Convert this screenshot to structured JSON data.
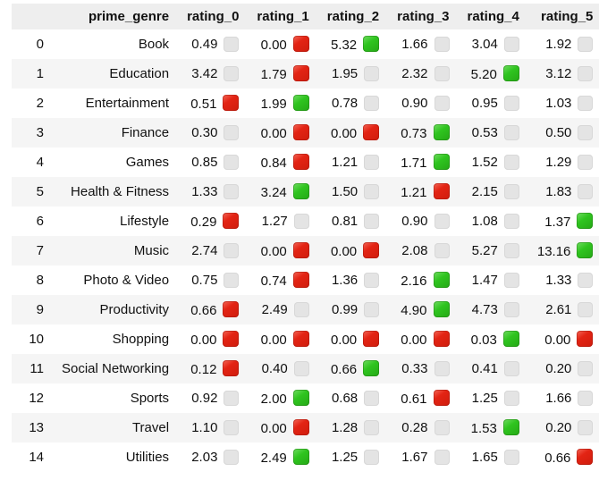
{
  "table": {
    "columns": [
      "",
      "prime_genre",
      "rating_0",
      "rating_1",
      "rating_2",
      "rating_3",
      "rating_4",
      "rating_5"
    ],
    "rows": [
      {
        "index": "0",
        "genre": "Book",
        "cells": [
          {
            "value": "0.49",
            "color": "gray"
          },
          {
            "value": "0.00",
            "color": "red"
          },
          {
            "value": "5.32",
            "color": "green"
          },
          {
            "value": "1.66",
            "color": "gray"
          },
          {
            "value": "3.04",
            "color": "gray"
          },
          {
            "value": "1.92",
            "color": "gray"
          }
        ]
      },
      {
        "index": "1",
        "genre": "Education",
        "cells": [
          {
            "value": "3.42",
            "color": "gray"
          },
          {
            "value": "1.79",
            "color": "red"
          },
          {
            "value": "1.95",
            "color": "gray"
          },
          {
            "value": "2.32",
            "color": "gray"
          },
          {
            "value": "5.20",
            "color": "green"
          },
          {
            "value": "3.12",
            "color": "gray"
          }
        ]
      },
      {
        "index": "2",
        "genre": "Entertainment",
        "cells": [
          {
            "value": "0.51",
            "color": "red"
          },
          {
            "value": "1.99",
            "color": "green"
          },
          {
            "value": "0.78",
            "color": "gray"
          },
          {
            "value": "0.90",
            "color": "gray"
          },
          {
            "value": "0.95",
            "color": "gray"
          },
          {
            "value": "1.03",
            "color": "gray"
          }
        ]
      },
      {
        "index": "3",
        "genre": "Finance",
        "cells": [
          {
            "value": "0.30",
            "color": "gray"
          },
          {
            "value": "0.00",
            "color": "red"
          },
          {
            "value": "0.00",
            "color": "red"
          },
          {
            "value": "0.73",
            "color": "green"
          },
          {
            "value": "0.53",
            "color": "gray"
          },
          {
            "value": "0.50",
            "color": "gray"
          }
        ]
      },
      {
        "index": "4",
        "genre": "Games",
        "cells": [
          {
            "value": "0.85",
            "color": "gray"
          },
          {
            "value": "0.84",
            "color": "red"
          },
          {
            "value": "1.21",
            "color": "gray"
          },
          {
            "value": "1.71",
            "color": "green"
          },
          {
            "value": "1.52",
            "color": "gray"
          },
          {
            "value": "1.29",
            "color": "gray"
          }
        ]
      },
      {
        "index": "5",
        "genre": "Health & Fitness",
        "cells": [
          {
            "value": "1.33",
            "color": "gray"
          },
          {
            "value": "3.24",
            "color": "green"
          },
          {
            "value": "1.50",
            "color": "gray"
          },
          {
            "value": "1.21",
            "color": "red"
          },
          {
            "value": "2.15",
            "color": "gray"
          },
          {
            "value": "1.83",
            "color": "gray"
          }
        ]
      },
      {
        "index": "6",
        "genre": "Lifestyle",
        "cells": [
          {
            "value": "0.29",
            "color": "red"
          },
          {
            "value": "1.27",
            "color": "gray"
          },
          {
            "value": "0.81",
            "color": "gray"
          },
          {
            "value": "0.90",
            "color": "gray"
          },
          {
            "value": "1.08",
            "color": "gray"
          },
          {
            "value": "1.37",
            "color": "green"
          }
        ]
      },
      {
        "index": "7",
        "genre": "Music",
        "cells": [
          {
            "value": "2.74",
            "color": "gray"
          },
          {
            "value": "0.00",
            "color": "red"
          },
          {
            "value": "0.00",
            "color": "red"
          },
          {
            "value": "2.08",
            "color": "gray"
          },
          {
            "value": "5.27",
            "color": "gray"
          },
          {
            "value": "13.16",
            "color": "green"
          }
        ]
      },
      {
        "index": "8",
        "genre": "Photo & Video",
        "cells": [
          {
            "value": "0.75",
            "color": "gray"
          },
          {
            "value": "0.74",
            "color": "red"
          },
          {
            "value": "1.36",
            "color": "gray"
          },
          {
            "value": "2.16",
            "color": "green"
          },
          {
            "value": "1.47",
            "color": "gray"
          },
          {
            "value": "1.33",
            "color": "gray"
          }
        ]
      },
      {
        "index": "9",
        "genre": "Productivity",
        "cells": [
          {
            "value": "0.66",
            "color": "red"
          },
          {
            "value": "2.49",
            "color": "gray"
          },
          {
            "value": "0.99",
            "color": "gray"
          },
          {
            "value": "4.90",
            "color": "green"
          },
          {
            "value": "4.73",
            "color": "gray"
          },
          {
            "value": "2.61",
            "color": "gray"
          }
        ]
      },
      {
        "index": "10",
        "genre": "Shopping",
        "cells": [
          {
            "value": "0.00",
            "color": "red"
          },
          {
            "value": "0.00",
            "color": "red"
          },
          {
            "value": "0.00",
            "color": "red"
          },
          {
            "value": "0.00",
            "color": "red"
          },
          {
            "value": "0.03",
            "color": "green"
          },
          {
            "value": "0.00",
            "color": "red"
          }
        ]
      },
      {
        "index": "11",
        "genre": "Social Networking",
        "cells": [
          {
            "value": "0.12",
            "color": "red"
          },
          {
            "value": "0.40",
            "color": "gray"
          },
          {
            "value": "0.66",
            "color": "green"
          },
          {
            "value": "0.33",
            "color": "gray"
          },
          {
            "value": "0.41",
            "color": "gray"
          },
          {
            "value": "0.20",
            "color": "gray"
          }
        ]
      },
      {
        "index": "12",
        "genre": "Sports",
        "cells": [
          {
            "value": "0.92",
            "color": "gray"
          },
          {
            "value": "2.00",
            "color": "green"
          },
          {
            "value": "0.68",
            "color": "gray"
          },
          {
            "value": "0.61",
            "color": "red"
          },
          {
            "value": "1.25",
            "color": "gray"
          },
          {
            "value": "1.66",
            "color": "gray"
          }
        ]
      },
      {
        "index": "13",
        "genre": "Travel",
        "cells": [
          {
            "value": "1.10",
            "color": "gray"
          },
          {
            "value": "0.00",
            "color": "red"
          },
          {
            "value": "1.28",
            "color": "gray"
          },
          {
            "value": "0.28",
            "color": "gray"
          },
          {
            "value": "1.53",
            "color": "green"
          },
          {
            "value": "0.20",
            "color": "gray"
          }
        ]
      },
      {
        "index": "14",
        "genre": "Utilities",
        "cells": [
          {
            "value": "2.03",
            "color": "gray"
          },
          {
            "value": "2.49",
            "color": "green"
          },
          {
            "value": "1.25",
            "color": "gray"
          },
          {
            "value": "1.67",
            "color": "gray"
          },
          {
            "value": "1.65",
            "color": "gray"
          },
          {
            "value": "0.66",
            "color": "red"
          }
        ]
      }
    ]
  },
  "colors": {
    "red_square": "#e32414",
    "green_square": "#2fc41f",
    "gray_square": "#e4e4e4",
    "header_bg": "#eeeeee",
    "row_stripe_bg": "#f5f5f5",
    "text": "#111111"
  }
}
